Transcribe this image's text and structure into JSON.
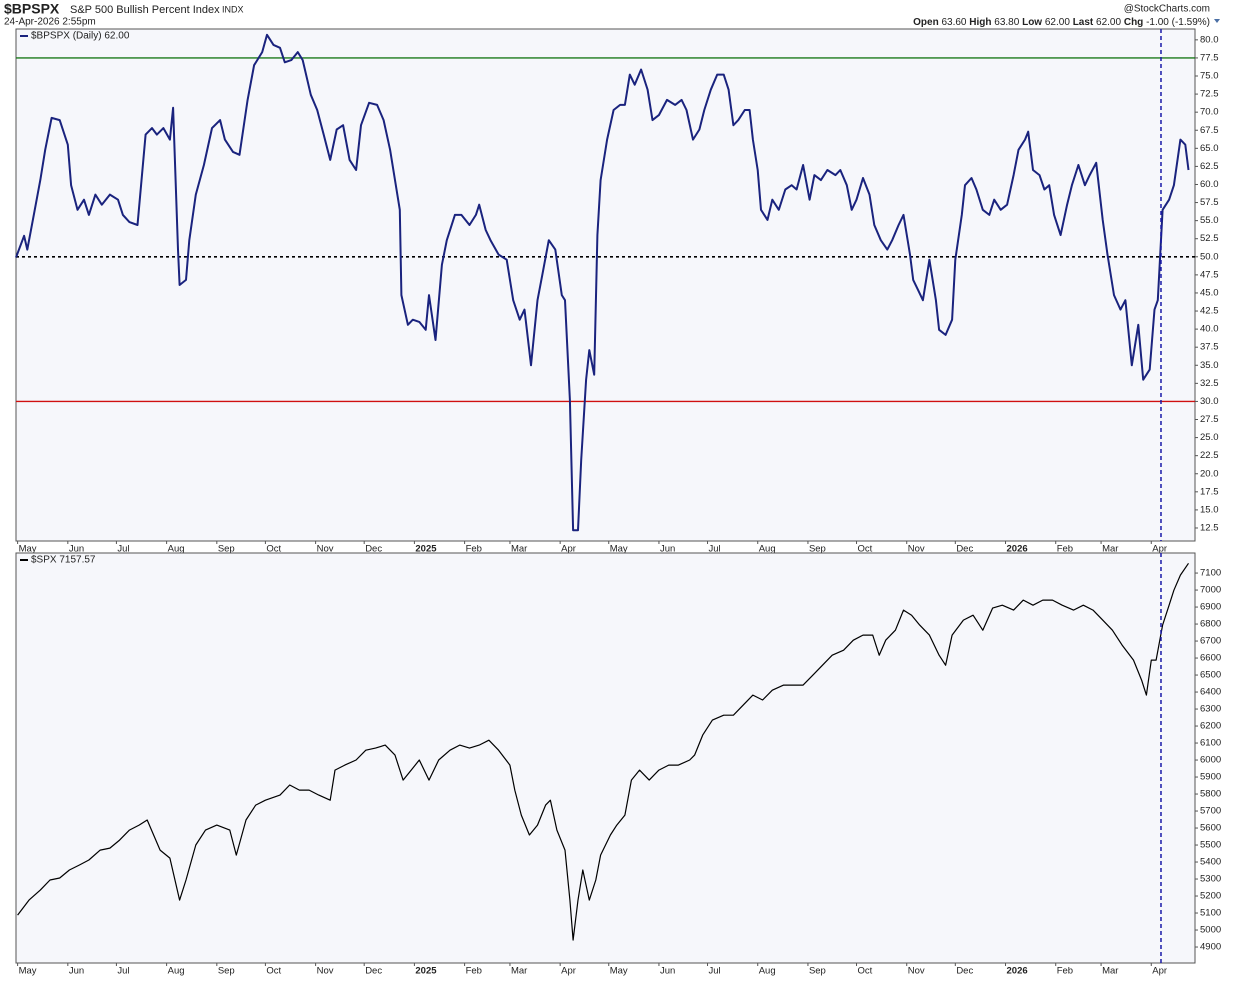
{
  "header": {
    "symbol": "$BPSPX",
    "name": "S&P 500 Bullish Percent Index",
    "exchange": "INDX",
    "timestamp": "24-Apr-2026 2:55pm",
    "brand": "@StockCharts.com",
    "quote": [
      {
        "label": "Open",
        "value": "63.60"
      },
      {
        "label": "High",
        "value": "63.80"
      },
      {
        "label": "Low",
        "value": "62.00"
      },
      {
        "label": "Last",
        "value": "62.00"
      },
      {
        "label": "Chg",
        "value": "-1.00 (-1.59%)"
      }
    ]
  },
  "chart_data": [
    {
      "type": "line",
      "legend": "$BPSPX (Daily) 62.00",
      "x": [
        -1,
        4,
        6,
        10,
        14,
        17,
        21,
        26,
        31,
        33,
        37,
        41,
        44,
        48,
        52,
        57,
        62,
        65,
        69,
        74,
        79,
        83,
        86,
        90,
        94,
        96,
        99,
        100,
        104,
        106,
        110,
        115,
        120,
        125,
        128,
        133,
        137,
        142,
        146,
        151,
        154,
        158,
        162,
        165,
        169,
        173,
        176,
        181,
        185,
        189,
        193,
        197,
        201,
        205,
        209,
        212,
        217,
        222,
        226,
        230,
        233,
        236,
        237,
        241,
        244,
        248,
        252,
        254,
        258,
        262,
        265,
        270,
        274,
        279,
        283,
        285,
        289,
        292,
        297,
        302,
        306,
        310,
        313,
        317,
        321,
        324,
        328,
        332,
        336,
        338,
        341,
        343,
        346,
        348,
        351,
        353,
        356,
        358,
        360,
        364,
        368,
        372,
        375,
        378,
        381,
        385,
        389,
        392,
        396,
        401,
        406,
        410,
        413,
        417,
        421,
        424,
        428,
        432,
        436,
        439,
        442,
        445,
        449,
        452,
        454,
        457,
        459,
        463,
        466,
        470,
        474,
        478,
        481,
        485,
        489,
        492,
        496,
        500,
        505,
        508,
        512,
        515,
        518,
        522,
        526,
        529,
        533,
        537,
        540,
        544,
        547,
        551,
        553,
        556,
        559,
        563,
        567,
        569,
        573,
        577,
        579,
        583,
        585,
        589,
        592,
        596,
        600,
        603,
        607,
        611,
        615,
        618,
        622,
        624,
        627,
        631,
        634,
        637,
        640,
        644,
        648,
        651,
        655,
        659,
        662,
        666,
        670,
        673,
        677,
        681,
        684,
        688,
        692,
        695,
        699,
        702,
        704,
        707,
        711,
        714,
        718,
        721,
        723
      ],
      "series": [
        {
          "name": "$BPSPX",
          "color": "#1a237e",
          "values": [
            49.9,
            52.9,
            51.0,
            55.8,
            60.6,
            64.8,
            69.2,
            68.9,
            65.5,
            59.9,
            56.5,
            57.9,
            55.8,
            58.6,
            57.2,
            58.6,
            57.9,
            55.8,
            54.8,
            54.4,
            66.9,
            67.8,
            66.9,
            67.8,
            66.2,
            70.6,
            51.0,
            46.1,
            46.8,
            52.3,
            58.6,
            62.7,
            67.8,
            68.9,
            66.2,
            64.5,
            64.1,
            71.7,
            76.5,
            78.3,
            80.7,
            79.3,
            78.9,
            76.9,
            77.2,
            78.3,
            77.2,
            72.4,
            70.3,
            66.9,
            63.4,
            67.6,
            68.2,
            63.4,
            62.0,
            68.2,
            71.3,
            71.0,
            68.9,
            64.8,
            60.6,
            56.5,
            44.7,
            40.6,
            41.3,
            41.0,
            39.9,
            44.7,
            38.5,
            48.9,
            52.3,
            55.8,
            55.8,
            54.4,
            55.8,
            57.2,
            53.7,
            52.3,
            50.3,
            49.6,
            44.0,
            41.3,
            42.7,
            35.0,
            44.0,
            47.5,
            52.3,
            51.0,
            44.7,
            44.0,
            30.2,
            12.2,
            12.2,
            21.9,
            33.0,
            37.1,
            33.7,
            53.0,
            60.6,
            66.2,
            70.3,
            71.0,
            71.0,
            75.2,
            73.8,
            75.9,
            73.1,
            68.9,
            69.6,
            71.7,
            71.0,
            71.7,
            70.3,
            66.2,
            67.6,
            70.3,
            73.1,
            75.2,
            75.2,
            73.1,
            68.2,
            68.9,
            70.3,
            70.3,
            66.2,
            62.0,
            56.5,
            55.1,
            57.9,
            56.5,
            59.3,
            59.9,
            59.3,
            62.7,
            57.9,
            61.3,
            60.6,
            62.0,
            61.3,
            62.0,
            59.9,
            56.5,
            57.9,
            60.9,
            58.6,
            54.4,
            52.3,
            51.0,
            52.3,
            54.4,
            55.8,
            50.3,
            46.8,
            45.4,
            44.0,
            49.6,
            44.0,
            39.9,
            39.2,
            41.3,
            49.6,
            55.8,
            59.9,
            60.9,
            59.3,
            56.5,
            55.8,
            57.9,
            56.5,
            57.2,
            61.3,
            64.8,
            66.2,
            67.3,
            62.0,
            61.3,
            59.3,
            59.9,
            55.8,
            53.0,
            57.2,
            59.9,
            62.7,
            59.9,
            61.3,
            63.0,
            55.1,
            50.3,
            44.7,
            42.7,
            44.0,
            35.0,
            40.6,
            33.0,
            34.4,
            42.7,
            44.0,
            56.5,
            57.9,
            59.9,
            66.2,
            65.5,
            62.0
          ]
        }
      ],
      "xlim": [
        -1,
        727
      ],
      "xticks": [
        {
          "value": 0,
          "label": "May"
        },
        {
          "value": 31,
          "label": "Jun"
        },
        {
          "value": 61,
          "label": "Jul"
        },
        {
          "value": 92,
          "label": "Aug"
        },
        {
          "value": 123,
          "label": "Sep"
        },
        {
          "value": 153,
          "label": "Oct"
        },
        {
          "value": 184,
          "label": "Nov"
        },
        {
          "value": 214,
          "label": "Dec"
        },
        {
          "value": 245,
          "label": "2025"
        },
        {
          "value": 276,
          "label": "Feb"
        },
        {
          "value": 304,
          "label": "Mar"
        },
        {
          "value": 335,
          "label": "Apr"
        },
        {
          "value": 365,
          "label": "May"
        },
        {
          "value": 396,
          "label": "Jun"
        },
        {
          "value": 426,
          "label": "Jul"
        },
        {
          "value": 457,
          "label": "Aug"
        },
        {
          "value": 488,
          "label": "Sep"
        },
        {
          "value": 518,
          "label": "Oct"
        },
        {
          "value": 549,
          "label": "Nov"
        },
        {
          "value": 579,
          "label": "Dec"
        },
        {
          "value": 610,
          "label": "2026"
        },
        {
          "value": 641,
          "label": "Feb"
        },
        {
          "value": 669,
          "label": "Mar"
        },
        {
          "value": 700,
          "label": "Apr"
        }
      ],
      "ylim": [
        10.7,
        81.5
      ],
      "yticks": [
        12.5,
        {
          "value": 15,
          "label": "15.0"
        },
        17.5,
        {
          "value": 20,
          "label": "20.0"
        },
        22.5,
        {
          "value": 25,
          "label": "25.0"
        },
        27.5,
        {
          "value": 30,
          "label": "30.0"
        },
        32.5,
        {
          "value": 35,
          "label": "35.0"
        },
        37.5,
        {
          "value": 40,
          "label": "40.0"
        },
        42.5,
        {
          "value": 45,
          "label": "45.0"
        },
        47.5,
        {
          "value": 50,
          "label": "50.0"
        },
        52.5,
        {
          "value": 55,
          "label": "55.0"
        },
        57.5,
        {
          "value": 60,
          "label": "60.0"
        },
        62.5,
        {
          "value": 65,
          "label": "65.0"
        },
        67.5,
        {
          "value": 70,
          "label": "70.0"
        },
        72.5,
        {
          "value": 75,
          "label": "75.0"
        },
        77.5,
        {
          "value": 80,
          "label": "80.0"
        }
      ],
      "hlines": [
        {
          "value": 77.5,
          "color": "#1b7a1b"
        },
        {
          "value": 50,
          "color": "#000000",
          "dashed": true
        },
        {
          "value": 30,
          "color": "#d01010"
        }
      ],
      "vline": {
        "value": 706,
        "color": "#1a1aa8"
      }
    },
    {
      "type": "line",
      "legend": "$SPX 7157.57",
      "x": [
        0,
        7,
        14,
        20,
        26,
        32,
        38,
        44,
        51,
        57,
        63,
        69,
        75,
        80,
        88,
        94,
        100,
        104,
        110,
        116,
        123,
        131,
        135,
        141,
        147,
        153,
        162,
        168,
        174,
        180,
        186,
        193,
        196,
        202,
        209,
        215,
        221,
        227,
        233,
        238,
        243,
        248,
        254,
        260,
        267,
        273,
        279,
        285,
        291,
        297,
        304,
        307,
        311,
        316,
        321,
        326,
        329,
        333,
        338,
        341,
        343,
        346,
        349,
        353,
        357,
        360,
        366,
        370,
        375,
        379,
        384,
        390,
        396,
        402,
        408,
        415,
        418,
        423,
        429,
        436,
        442,
        448,
        454,
        460,
        466,
        473,
        479,
        485,
        491,
        497,
        503,
        510,
        516,
        522,
        528,
        532,
        536,
        542,
        547,
        552,
        557,
        563,
        569,
        573,
        577,
        584,
        590,
        596,
        602,
        608,
        615,
        621,
        627,
        633,
        639,
        645,
        652,
        658,
        664,
        670,
        676,
        682,
        689,
        694,
        697,
        700,
        703,
        707,
        711,
        714,
        718,
        723
      ],
      "series": [
        {
          "name": "$SPX",
          "color": "#000000",
          "values": [
            5088,
            5176,
            5235,
            5294,
            5306,
            5353,
            5382,
            5412,
            5470,
            5482,
            5529,
            5588,
            5617,
            5647,
            5470,
            5423,
            5176,
            5294,
            5500,
            5588,
            5617,
            5588,
            5441,
            5647,
            5735,
            5764,
            5794,
            5853,
            5823,
            5823,
            5794,
            5764,
            5941,
            5970,
            6000,
            6058,
            6070,
            6088,
            6029,
            5882,
            5941,
            6000,
            5882,
            6000,
            6058,
            6088,
            6070,
            6088,
            6117,
            6058,
            5970,
            5823,
            5676,
            5559,
            5617,
            5735,
            5764,
            5588,
            5470,
            5176,
            4941,
            5176,
            5353,
            5176,
            5294,
            5441,
            5559,
            5617,
            5676,
            5882,
            5941,
            5882,
            5941,
            5970,
            5970,
            6000,
            6029,
            6147,
            6235,
            6264,
            6264,
            6323,
            6382,
            6353,
            6411,
            6441,
            6441,
            6441,
            6499,
            6558,
            6617,
            6646,
            6705,
            6735,
            6735,
            6617,
            6705,
            6764,
            6882,
            6852,
            6794,
            6735,
            6617,
            6558,
            6735,
            6823,
            6852,
            6764,
            6894,
            6911,
            6882,
            6941,
            6911,
            6941,
            6941,
            6911,
            6882,
            6911,
            6882,
            6823,
            6764,
            6676,
            6588,
            6470,
            6382,
            6588,
            6588,
            6794,
            6911,
            6999,
            7088,
            7157.57
          ]
        }
      ],
      "xlim": [
        -1,
        727
      ],
      "xticks": [
        {
          "value": 0,
          "label": "May"
        },
        {
          "value": 31,
          "label": "Jun"
        },
        {
          "value": 61,
          "label": "Jul"
        },
        {
          "value": 92,
          "label": "Aug"
        },
        {
          "value": 123,
          "label": "Sep"
        },
        {
          "value": 153,
          "label": "Oct"
        },
        {
          "value": 184,
          "label": "Nov"
        },
        {
          "value": 214,
          "label": "Dec"
        },
        {
          "value": 245,
          "label": "2025"
        },
        {
          "value": 276,
          "label": "Feb"
        },
        {
          "value": 304,
          "label": "Mar"
        },
        {
          "value": 335,
          "label": "Apr"
        },
        {
          "value": 365,
          "label": "May"
        },
        {
          "value": 396,
          "label": "Jun"
        },
        {
          "value": 426,
          "label": "Jul"
        },
        {
          "value": 457,
          "label": "Aug"
        },
        {
          "value": 488,
          "label": "Sep"
        },
        {
          "value": 518,
          "label": "Oct"
        },
        {
          "value": 549,
          "label": "Nov"
        },
        {
          "value": 579,
          "label": "Dec"
        },
        {
          "value": 610,
          "label": "2026"
        },
        {
          "value": 641,
          "label": "Feb"
        },
        {
          "value": 669,
          "label": "Mar"
        },
        {
          "value": 700,
          "label": "Apr"
        }
      ],
      "ylim": [
        4806,
        7218
      ],
      "yticks": [
        4900,
        5000,
        5100,
        5200,
        5300,
        5400,
        5500,
        5600,
        5700,
        5800,
        5900,
        6000,
        6100,
        6200,
        6300,
        6400,
        6500,
        6600,
        6700,
        6800,
        6900,
        7000,
        7100
      ],
      "vline": {
        "value": 706,
        "color": "#1a1aa8"
      }
    }
  ]
}
